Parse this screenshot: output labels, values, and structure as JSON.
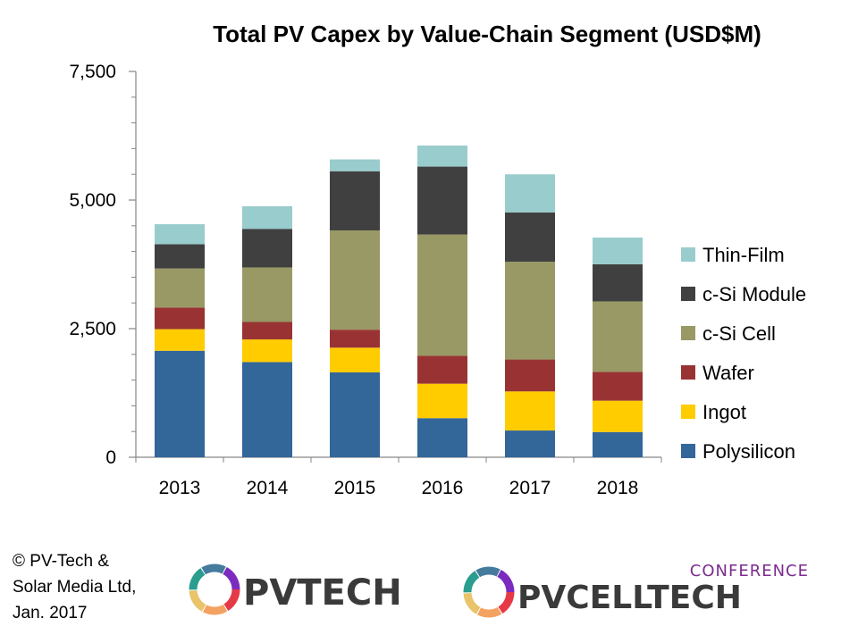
{
  "chart_data": {
    "type": "bar",
    "stacked": true,
    "title": "Total PV Capex by Value-Chain Segment (USD$M)",
    "categories": [
      "2013",
      "2014",
      "2015",
      "2016",
      "2017",
      "2018"
    ],
    "ylim": [
      0,
      7500
    ],
    "yticks": [
      "0",
      "2,500",
      "5,000",
      "7,500"
    ],
    "ytick_values": [
      0,
      2500,
      5000,
      7500
    ],
    "grid": false,
    "legend_position": "right",
    "series": [
      {
        "name": "Polysilicon",
        "color": "#336699",
        "values": [
          2070,
          1850,
          1650,
          760,
          520,
          490
        ]
      },
      {
        "name": "Ingot",
        "color": "#FFCC00",
        "values": [
          420,
          440,
          480,
          670,
          760,
          610
        ]
      },
      {
        "name": "Wafer",
        "color": "#993333",
        "values": [
          420,
          340,
          350,
          540,
          620,
          560
        ]
      },
      {
        "name": "c-Si Cell",
        "color": "#999966",
        "values": [
          760,
          1060,
          1930,
          2360,
          1900,
          1370
        ]
      },
      {
        "name": "c-Si Module",
        "color": "#404040",
        "values": [
          470,
          750,
          1150,
          1320,
          960,
          720
        ]
      },
      {
        "name": "Thin-Film",
        "color": "#99CCCC",
        "values": [
          390,
          440,
          230,
          410,
          740,
          520
        ]
      }
    ]
  },
  "footer": {
    "copyright": "© PV-Tech &\nSolar Media Ltd,\nJan. 2017",
    "logo_pvtech_text": "PVTECH",
    "logo_conference_text": "CONFERENCE",
    "logo_pvcelltech_text": "PVCELLTECH"
  }
}
